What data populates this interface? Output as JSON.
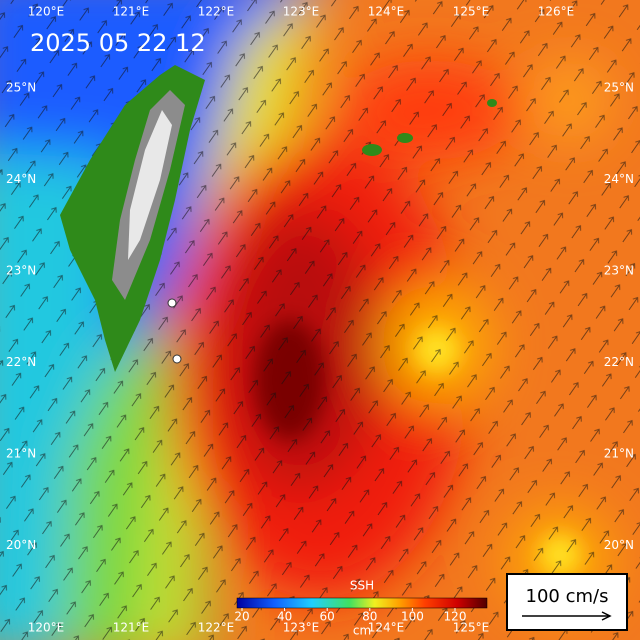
{
  "timestamp": "2025 05 22 12",
  "lon_labels": [
    "120°E",
    "121°E",
    "122°E",
    "123°E",
    "124°E",
    "125°E",
    "126°E"
  ],
  "lat_labels": [
    "25°N",
    "24°N",
    "23°N",
    "22°N",
    "21°N",
    "20°N"
  ],
  "colorbar": {
    "title": "SSH",
    "ticks": [
      20,
      40,
      60,
      80,
      100,
      120
    ],
    "unit": "cm"
  },
  "scale": {
    "label": "100 cm/s"
  }
}
